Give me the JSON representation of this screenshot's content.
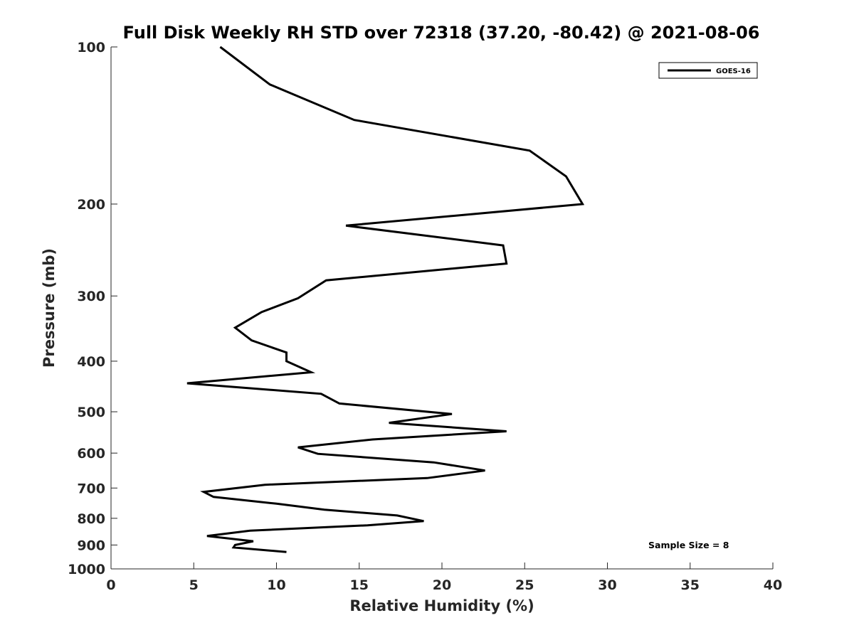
{
  "chart_data": {
    "type": "line",
    "title": "Full Disk Weekly RH STD over 72318 (37.20, -80.42) @ 2021-08-06",
    "xlabel": "Relative Humidity (%)",
    "ylabel": "Pressure (mb)",
    "xlim": [
      0,
      40
    ],
    "ylim": [
      100,
      1000
    ],
    "y_scale": "log",
    "y_reversed": true,
    "x_ticks": [
      "0",
      "5",
      "10",
      "15",
      "20",
      "25",
      "30",
      "35",
      "40"
    ],
    "y_ticks": [
      "100",
      "200",
      "300",
      "400",
      "500",
      "600",
      "700",
      "800",
      "900",
      "1000"
    ],
    "grid": false,
    "legend_position": "top-right",
    "annotation": "Sample Size = 8",
    "series": [
      {
        "name": "GOES-16",
        "color": "#000000",
        "x": [
          6.6,
          9.6,
          14.7,
          25.3,
          27.5,
          28.5,
          14.2,
          23.7,
          23.9,
          13.0,
          11.3,
          9.1,
          7.5,
          8.5,
          10.6,
          10.6,
          12.1,
          4.6,
          12.7,
          13.8,
          20.6,
          16.8,
          23.9,
          15.8,
          11.3,
          12.5,
          19.5,
          22.6,
          19.1,
          9.3,
          5.6,
          6.2,
          10.0,
          12.9,
          17.3,
          18.9,
          15.5,
          8.4,
          5.8,
          8.6,
          7.5,
          7.4,
          10.6
        ],
        "y": [
          100,
          118,
          138,
          158,
          177,
          200,
          220,
          240,
          260,
          280,
          303,
          322,
          345,
          365,
          385,
          400,
          420,
          441,
          462,
          482,
          505,
          525,
          545,
          565,
          585,
          602,
          625,
          648,
          670,
          690,
          712,
          728,
          750,
          770,
          790,
          810,
          825,
          845,
          865,
          885,
          900,
          910,
          928
        ]
      }
    ]
  }
}
